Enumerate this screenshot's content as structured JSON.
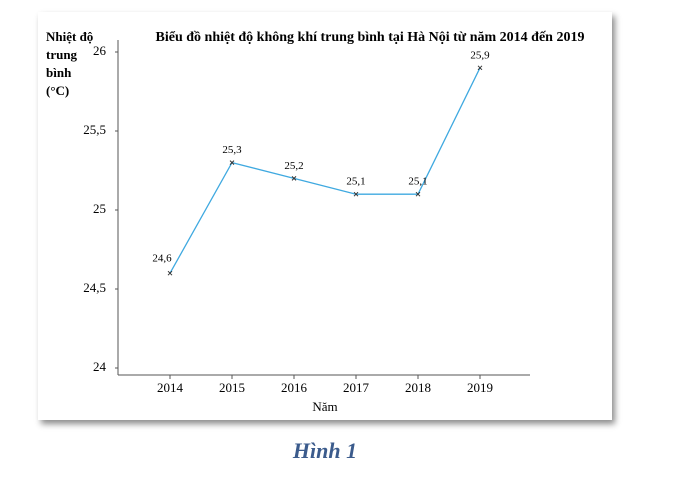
{
  "chart_data": {
    "type": "line",
    "title": "Biểu đồ nhiệt độ không khí trung bình tại Hà Nội từ năm 2014 đến 2019",
    "y_label": "Nhiệt độ trung bình (°C)",
    "x_label": "Năm",
    "categories": [
      "2014",
      "2015",
      "2016",
      "2017",
      "2018",
      "2019"
    ],
    "values": [
      24.6,
      25.3,
      25.2,
      25.1,
      25.1,
      25.9
    ],
    "value_labels": [
      "24,6",
      "25,3",
      "25,2",
      "25,1",
      "25,1",
      "25,9"
    ],
    "color": "#3fa9e0",
    "ylim": [
      24,
      26
    ],
    "yticks": [
      24,
      {
        "value": 24.5,
        "label": "24,5"
      },
      25,
      {
        "value": 25.5,
        "label": "25,5"
      },
      26
    ],
    "caption": "Hình 1"
  }
}
